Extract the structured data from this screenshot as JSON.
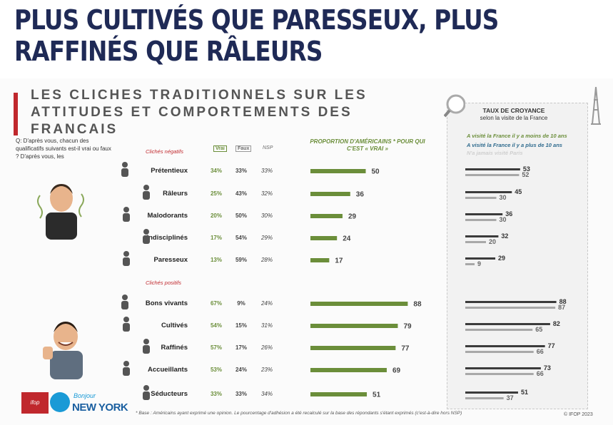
{
  "headline": "PLUS CULTIVÉS QUE PARESSEUX, PLUS RAFFINÉS QUE RÂLEURS",
  "subtitle": "LES CLICHES TRADITIONNELS SUR LES ATTITUDES ET COMPORTEMENTS DES FRANCAIS",
  "question": "Q: D'après vous, chacun des qualificatifs suivants est-il vrai ou faux ? D'après vous, les",
  "labels": {
    "negative_group": "Clichés négatifs",
    "positive_group": "Clichés positifs",
    "col_vrai": "Vrai",
    "col_faux": "Faux",
    "col_nsp": "NSP",
    "proportion_title": "PROPORTION D'AMÉRICAINS * POUR QUI C'EST « VRAI »"
  },
  "colors": {
    "title": "#1f2a56",
    "accent_red": "#c0282d",
    "bar_green": "#6b8e3a",
    "recent_bar": "#3b3b3b",
    "older_bar": "#a8a8a8",
    "never_bar": "#dcdcdc"
  },
  "panel": {
    "title": "TAUX DE CROYANCE",
    "subtitle": "selon la visite de la France",
    "legend": [
      {
        "label": "A visité la France il y a moins de 10 ans",
        "color": "#6b8e3a"
      },
      {
        "label": "A visité la France il y a plus de 10 ans",
        "color": "#2f6b8e"
      },
      {
        "label": "N'a jamais visité Paris",
        "color": "#cfcfcf"
      }
    ]
  },
  "chart_data": {
    "type": "bar",
    "title": "PROPORTION D'AMÉRICAINS * POUR QUI C'EST « VRAI »",
    "categories": [
      "Prétentieux",
      "Râleurs",
      "Malodorants",
      "Indisciplinés",
      "Paresseux",
      "Bons vivants",
      "Cultivés",
      "Raffinés",
      "Accueillants",
      "Séducteurs"
    ],
    "groups": [
      "Clichés négatifs",
      "Clichés négatifs",
      "Clichés négatifs",
      "Clichés négatifs",
      "Clichés négatifs",
      "Clichés positifs",
      "Clichés positifs",
      "Clichés positifs",
      "Clichés positifs",
      "Clichés positifs"
    ],
    "vrai": [
      "34%",
      "25%",
      "20%",
      "17%",
      "13%",
      "67%",
      "54%",
      "57%",
      "53%",
      "33%"
    ],
    "faux": [
      "33%",
      "43%",
      "50%",
      "54%",
      "59%",
      "9%",
      "15%",
      "17%",
      "24%",
      "33%"
    ],
    "nsp": [
      "33%",
      "32%",
      "30%",
      "29%",
      "28%",
      "24%",
      "31%",
      "26%",
      "23%",
      "34%"
    ],
    "values": [
      50,
      36,
      29,
      24,
      17,
      88,
      79,
      77,
      69,
      51
    ],
    "xlim": [
      0,
      100
    ],
    "belief_by_visit": {
      "series": [
        {
          "name": "A visité la France il y a moins de 10 ans",
          "values": [
            53,
            45,
            36,
            32,
            29,
            88,
            82,
            77,
            73,
            51
          ]
        },
        {
          "name": "A visité la France il y a plus de 10 ans",
          "values": [
            52,
            30,
            30,
            20,
            9,
            87,
            65,
            66,
            66,
            37
          ]
        },
        {
          "name": "N'a jamais visité Paris",
          "values": [
            null,
            null,
            null,
            null,
            null,
            null,
            null,
            null,
            null,
            null
          ]
        }
      ]
    }
  },
  "footnote": "* Base : Américains ayant exprimé une opinion. Le pourcentage d'adhésion a été recalculé sur la base des répondants s'étant exprimés (c'est-à-dire hors NSP)",
  "copyright": "© IFOP 2023",
  "logos": {
    "ifop": "ifop",
    "bonjour": "Bonjour",
    "ny": "NEW YORK"
  }
}
